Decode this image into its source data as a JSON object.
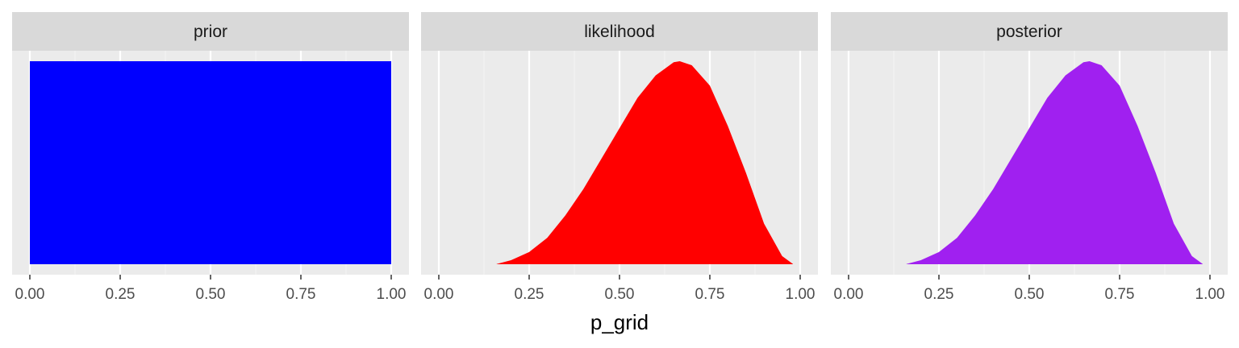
{
  "chart_data": {
    "type": "area",
    "xlabel": "p_grid",
    "ylabel": "",
    "xlim": [
      0,
      1
    ],
    "x_ticks": [
      "0.00",
      "0.25",
      "0.50",
      "0.75",
      "1.00"
    ],
    "x_tick_values": [
      0,
      0.25,
      0.5,
      0.75,
      1
    ],
    "grid": true,
    "y_axis_labels_shown": false,
    "panels": [
      {
        "strip_label": "prior",
        "fill_color": "#0000ff",
        "x": [
          0,
          1
        ],
        "y": [
          1,
          1
        ]
      },
      {
        "strip_label": "likelihood",
        "fill_color": "#ff0000",
        "x": [
          0.16,
          0.2,
          0.25,
          0.3,
          0.35,
          0.4,
          0.45,
          0.5,
          0.55,
          0.6,
          0.65,
          0.6667,
          0.7,
          0.75,
          0.8,
          0.85,
          0.9,
          0.95,
          0.98
        ],
        "y": [
          0.001,
          0.02,
          0.06,
          0.13,
          0.24,
          0.37,
          0.52,
          0.67,
          0.82,
          0.93,
          0.995,
          1.0,
          0.98,
          0.88,
          0.68,
          0.45,
          0.2,
          0.04,
          0.001
        ]
      },
      {
        "strip_label": "posterior",
        "fill_color": "#a020f0",
        "x": [
          0.16,
          0.2,
          0.25,
          0.3,
          0.35,
          0.4,
          0.45,
          0.5,
          0.55,
          0.6,
          0.65,
          0.6667,
          0.7,
          0.75,
          0.8,
          0.85,
          0.9,
          0.95,
          0.98
        ],
        "y": [
          0.001,
          0.02,
          0.06,
          0.13,
          0.24,
          0.37,
          0.52,
          0.67,
          0.82,
          0.93,
          0.995,
          1.0,
          0.98,
          0.88,
          0.68,
          0.45,
          0.2,
          0.04,
          0.001
        ]
      }
    ]
  },
  "colors": {
    "strip_bg": "#d9d9d9",
    "panel_bg": "#ebebeb",
    "grid_major": "#ffffff",
    "tick_color": "#333333"
  }
}
